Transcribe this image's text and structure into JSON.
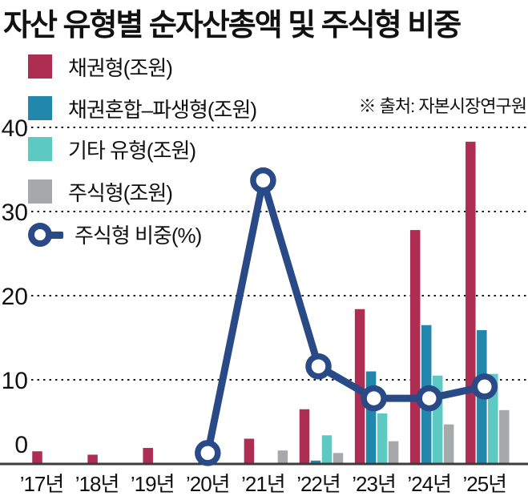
{
  "title": "자산 유형별 순자산총액 및 주식형 비중",
  "source": "※ 출처: 자본시장연구원",
  "chart_data": {
    "type": "bar+line",
    "title": "자산 유형별 순자산총액 및 주식형 비중",
    "categories": [
      "’17년",
      "’18년",
      "’19년",
      "’20년",
      "’21년",
      "’22년",
      "’23년",
      "’24년",
      "’25년"
    ],
    "bar_series": [
      {
        "name": "채권형(조원)",
        "color": "#ad2d53",
        "values": [
          1.5,
          1.1,
          1.9,
          2.1,
          3.0,
          6.5,
          18.4,
          27.8,
          38.3
        ]
      },
      {
        "name": "채권혼합–파생형(조원)",
        "color": "#2187ac",
        "values": [
          0,
          0,
          0,
          0,
          0,
          0.4,
          11.0,
          16.5,
          15.9
        ]
      },
      {
        "name": "기타 유형(조원)",
        "color": "#5cc9c3",
        "values": [
          0,
          0,
          0,
          0,
          0,
          3.4,
          6.0,
          10.5,
          10.7
        ]
      },
      {
        "name": "주식형(조원)",
        "color": "#a6a8aa",
        "values": [
          0,
          0,
          0,
          0,
          1.6,
          1.3,
          2.7,
          4.7,
          6.4
        ]
      }
    ],
    "line_series": {
      "name": "주식형 비중(%)",
      "color": "#294a86",
      "values": [
        null,
        null,
        null,
        1.3,
        33.7,
        11.6,
        7.8,
        7.8,
        9.2
      ]
    },
    "yticks": [
      0,
      10,
      20,
      30,
      40
    ],
    "ylim": [
      0,
      42
    ],
    "grid": "horizontal-dotted",
    "legend_position": "top-left",
    "axis_color": "#3c3c3c",
    "grid_color": "#1a1a1a",
    "text_color": "#111111"
  }
}
